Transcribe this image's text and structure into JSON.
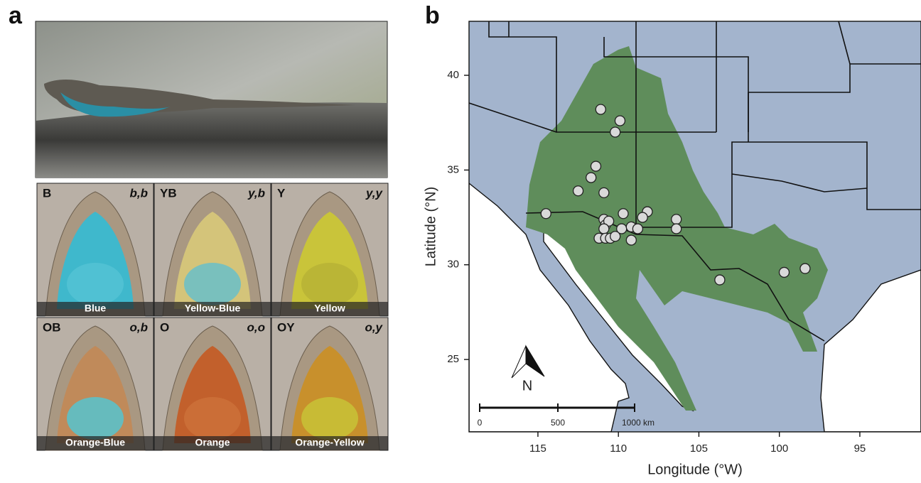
{
  "panel_a": {
    "letter": "a",
    "tiles": [
      {
        "code": "B",
        "genotype": "b,b",
        "label": "Blue"
      },
      {
        "code": "YB",
        "genotype": "y,b",
        "label": "Yellow-Blue"
      },
      {
        "code": "Y",
        "genotype": "y,y",
        "label": "Yellow"
      },
      {
        "code": "OB",
        "genotype": "o,b",
        "label": "Orange-Blue"
      },
      {
        "code": "O",
        "genotype": "o,o",
        "label": "Orange"
      },
      {
        "code": "OY",
        "genotype": "o,y",
        "label": "Orange-Yellow"
      }
    ]
  },
  "chart_data": {
    "type": "scatter",
    "letter": "b",
    "x_label": "Longitude (°W)",
    "y_label": "Latitude (°N)",
    "xlim": [
      119.28,
      91.2
    ],
    "ylim": [
      21.18,
      42.85
    ],
    "xticks": [
      115,
      110,
      105,
      100,
      95
    ],
    "yticks": [
      25,
      30,
      35,
      40
    ],
    "point_color": "#d9d9d9",
    "x": [
      111.1,
      109.9,
      110.2,
      111.4,
      111.7,
      112.5,
      110.9,
      114.5,
      109.7,
      108.2,
      108.5,
      106.4,
      106.4,
      110.9,
      110.8,
      110.6,
      110.9,
      109.8,
      109.2,
      108.8,
      111.2,
      110.8,
      110.5,
      110.2,
      109.2,
      103.7,
      99.7,
      98.4
    ],
    "values": [
      38.2,
      37.6,
      37.0,
      35.2,
      34.6,
      33.9,
      33.8,
      32.7,
      32.7,
      32.8,
      32.5,
      32.4,
      31.9,
      32.4,
      32.1,
      32.3,
      31.9,
      31.9,
      32.0,
      31.9,
      31.4,
      31.4,
      31.4,
      31.5,
      31.3,
      29.2,
      29.6,
      29.8
    ],
    "north_label": "N",
    "scale_bar_labels": [
      "0",
      "500",
      "1000 km"
    ]
  }
}
